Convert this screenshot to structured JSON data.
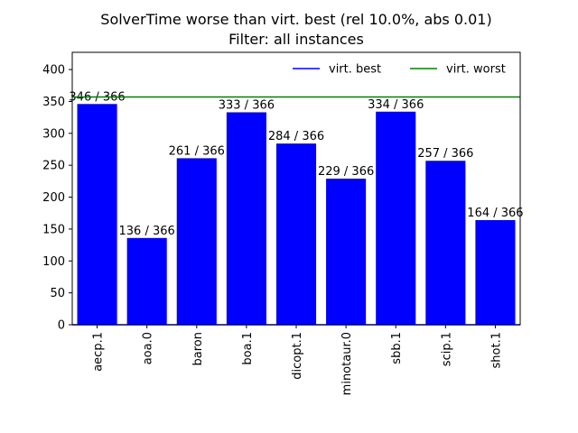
{
  "chart_data": {
    "type": "bar",
    "title_line1": "SolverTime worse than virt. best (rel 10.0%, abs 0.01)",
    "title_line2": "Filter: all instances",
    "xlabel": "",
    "ylabel": "",
    "categories": [
      "aecp.1",
      "aoa.0",
      "baron",
      "boa.1",
      "dicopt.1",
      "minotaur.0",
      "sbb.1",
      "scip.1",
      "shot.1"
    ],
    "values": [
      346,
      136,
      261,
      333,
      284,
      229,
      334,
      257,
      164
    ],
    "data_labels": [
      "346 / 366",
      "136 / 366",
      "261 / 366",
      "333 / 366",
      "284 / 366",
      "229 / 366",
      "334 / 366",
      "257 / 366",
      "164 / 366"
    ],
    "bar_color": "#0000ff",
    "ylim": [
      0,
      427
    ],
    "yticks": [
      0,
      50,
      100,
      150,
      200,
      250,
      300,
      350,
      400
    ],
    "lines": [
      {
        "name": "virt. best",
        "value": 0,
        "color": "#0000ff"
      },
      {
        "name": "virt. worst",
        "value": 357,
        "color": "#008000"
      }
    ],
    "legend_position": "top-right",
    "grid": false
  }
}
